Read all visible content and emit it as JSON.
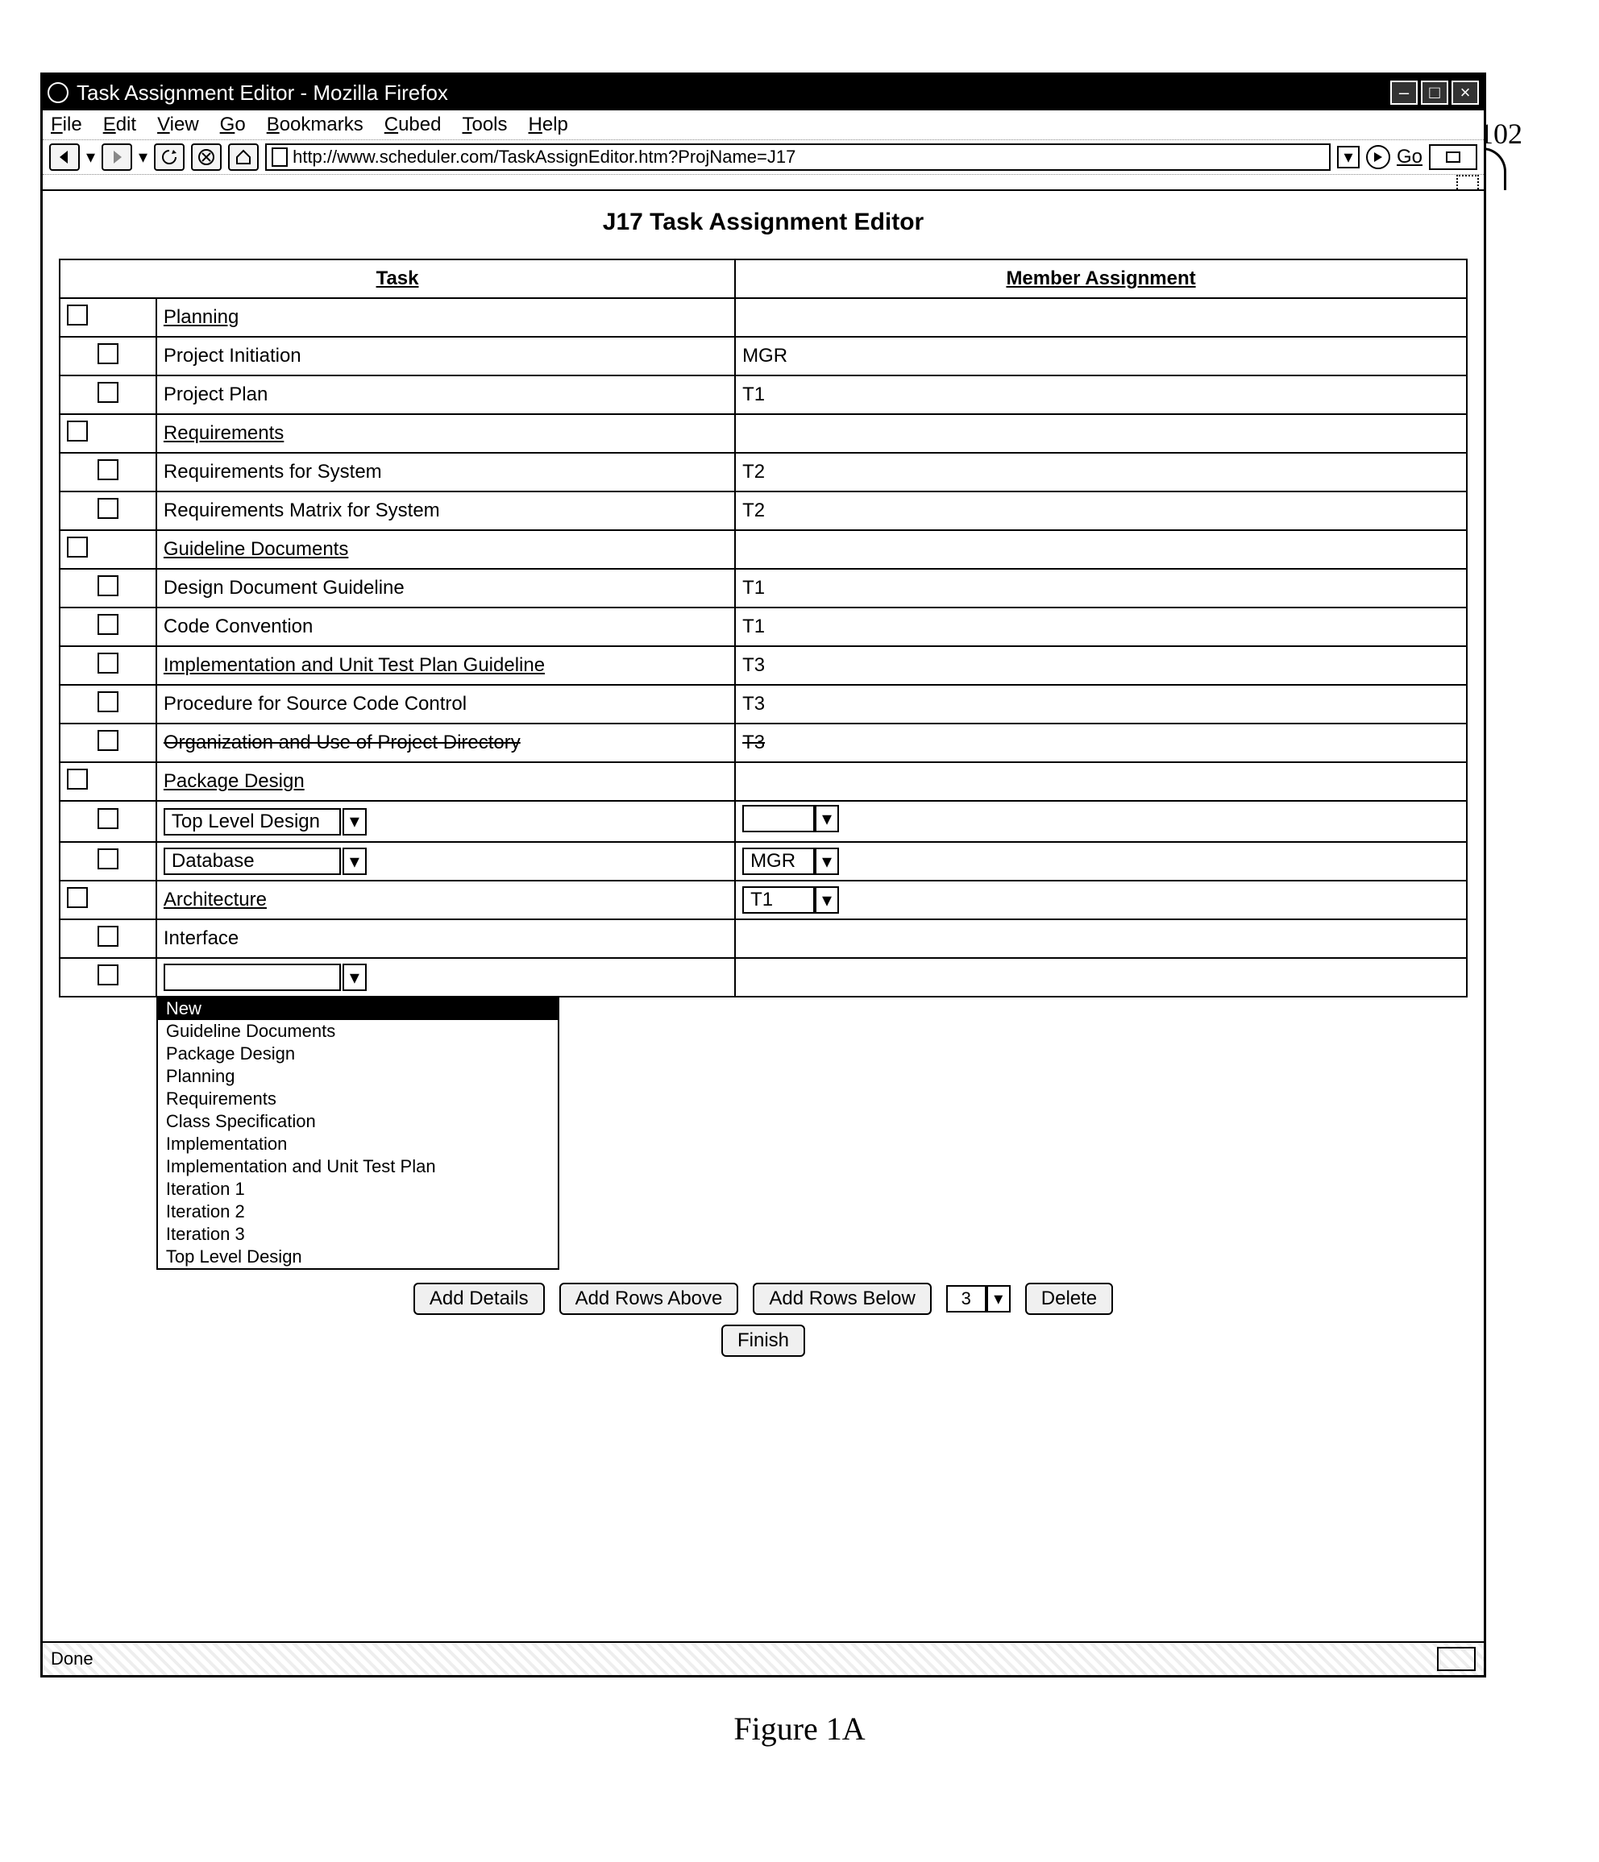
{
  "window": {
    "title": "Task Assignment Editor - Mozilla Firefox",
    "minimize": "–",
    "maximize": "□",
    "close": "×"
  },
  "callout": "102",
  "menu": [
    "File",
    "Edit",
    "View",
    "Go",
    "Bookmarks",
    "Cubed",
    "Tools",
    "Help"
  ],
  "toolbar": {
    "url": "http://www.scheduler.com/TaskAssignEditor.htm?ProjName=J17",
    "go": "Go"
  },
  "pageTitle": "J17 Task Assignment Editor",
  "columns": {
    "task": "Task",
    "member": "Member Assignment"
  },
  "rows": [
    {
      "type": "cat",
      "label": "Planning",
      "member": ""
    },
    {
      "type": "task",
      "label": "Project Initiation",
      "member": "MGR"
    },
    {
      "type": "task",
      "label": "Project Plan",
      "member": "T1"
    },
    {
      "type": "cat",
      "label": "Requirements",
      "member": ""
    },
    {
      "type": "task",
      "label": "Requirements for System",
      "member": "T2"
    },
    {
      "type": "task",
      "label": "Requirements Matrix for System",
      "member": "T2"
    },
    {
      "type": "cat",
      "label": "Guideline Documents",
      "member": ""
    },
    {
      "type": "task",
      "label": "Design Document Guideline",
      "member": "T1"
    },
    {
      "type": "task",
      "label": "Code Convention",
      "member": "T1"
    },
    {
      "type": "task",
      "label": "Implementation and Unit Test Plan Guideline",
      "uline": true,
      "member": "T3"
    },
    {
      "type": "task",
      "label": "Procedure for Source Code Control",
      "member": "T3"
    },
    {
      "type": "task",
      "label": "Organization and Use of Project Directory",
      "strike": true,
      "member": "T3",
      "memStrike": true
    },
    {
      "type": "cat",
      "label": "Package Design",
      "strike": true,
      "member": ""
    },
    {
      "type": "task",
      "label": "Top Level Design",
      "select": true,
      "member": "",
      "memSelect": true
    },
    {
      "type": "task",
      "label": "Database",
      "select": true,
      "member": "MGR",
      "memSelect": true
    },
    {
      "type": "cat",
      "label": "Architecture",
      "member": "T1",
      "memSelect": true
    },
    {
      "type": "task",
      "label": "Interface",
      "member": ""
    },
    {
      "type": "task",
      "label": "",
      "select": true,
      "open": true,
      "member": ""
    }
  ],
  "dropdown": [
    "New",
    "Guideline Documents",
    "Package Design",
    "Planning",
    "Requirements",
    "Class Specification",
    "Implementation",
    "Implementation and Unit Test Plan",
    "Iteration 1",
    "Iteration 2",
    "Iteration 3",
    "Top Level Design"
  ],
  "dropdownSelectedIndex": 0,
  "buttons": {
    "addDetails": "Add Details",
    "addAbove": "Add Rows Above",
    "addBelow": "Add Rows Below",
    "delete": "Delete",
    "finish": "Finish",
    "rowCount": "3"
  },
  "status": {
    "left": "Done"
  },
  "figure": "Figure 1A"
}
